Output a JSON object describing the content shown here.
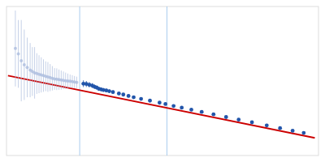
{
  "chart_data": {
    "type": "scatter",
    "series": [
      {
        "type": "vline",
        "color": "#aaccee",
        "x": [
          0.097,
          0.215
        ]
      },
      {
        "type": "line",
        "color": "#cc0000",
        "x": [
          0.0,
          0.415
        ],
        "values": [
          0.64,
          0.18
        ]
      },
      {
        "type": "scatter",
        "marker": "circle",
        "color": "#aabbdd",
        "x": [
          0.01,
          0.014,
          0.018,
          0.022,
          0.026,
          0.03,
          0.033,
          0.036,
          0.039,
          0.042,
          0.045,
          0.048,
          0.051,
          0.054,
          0.057,
          0.06,
          0.063,
          0.066,
          0.069,
          0.072,
          0.075,
          0.078,
          0.081,
          0.084,
          0.087,
          0.09,
          0.093
        ],
        "values": [
          0.84,
          0.8,
          0.75,
          0.72,
          0.7,
          0.68,
          0.67,
          0.66,
          0.655,
          0.65,
          0.645,
          0.64,
          0.635,
          0.63,
          0.625,
          0.62,
          0.615,
          0.613,
          0.61,
          0.607,
          0.605,
          0.602,
          0.6,
          0.598,
          0.595,
          0.592,
          0.59
        ],
        "errors": [
          0.28,
          0.25,
          0.3,
          0.26,
          0.22,
          0.2,
          0.18,
          0.19,
          0.15,
          0.14,
          0.13,
          0.12,
          0.11,
          0.11,
          0.1,
          0.09,
          0.08,
          0.08,
          0.075,
          0.07,
          0.065,
          0.06,
          0.055,
          0.05,
          0.048,
          0.045,
          0.042
        ]
      },
      {
        "type": "scatter",
        "marker": "circle",
        "color": "#2255aa",
        "x": [
          0.102,
          0.106,
          0.11,
          0.114,
          0.117,
          0.12,
          0.123,
          0.126,
          0.129,
          0.133,
          0.137,
          0.142,
          0.15,
          0.156,
          0.163,
          0.17,
          0.18,
          0.192,
          0.205,
          0.213,
          0.224,
          0.235,
          0.248,
          0.262,
          0.278,
          0.295,
          0.312,
          0.33,
          0.35,
          0.368,
          0.385,
          0.4
        ],
        "values": [
          0.58,
          0.578,
          0.572,
          0.566,
          0.558,
          0.552,
          0.542,
          0.538,
          0.534,
          0.53,
          0.525,
          0.518,
          0.508,
          0.5,
          0.49,
          0.48,
          0.468,
          0.455,
          0.44,
          0.43,
          0.416,
          0.403,
          0.388,
          0.372,
          0.354,
          0.334,
          0.315,
          0.295,
          0.272,
          0.252,
          0.233,
          0.217
        ],
        "errors": [
          0.025,
          0.022,
          0.02,
          0.018,
          0.017,
          0.016,
          0.015,
          0.015,
          0.014,
          0.014,
          0.013,
          0.013,
          0.012,
          0.012,
          0.012,
          0.011,
          0.011,
          0.011,
          0.01,
          0.01,
          0.01,
          0.01,
          0.009,
          0.009,
          0.009,
          0.009,
          0.009,
          0.008,
          0.012,
          0.009,
          0.008,
          0.01
        ]
      }
    ],
    "xlim": [
      -0.002,
      0.42
    ],
    "ylim": [
      0.05,
      1.15
    ],
    "tick_labels": false
  }
}
